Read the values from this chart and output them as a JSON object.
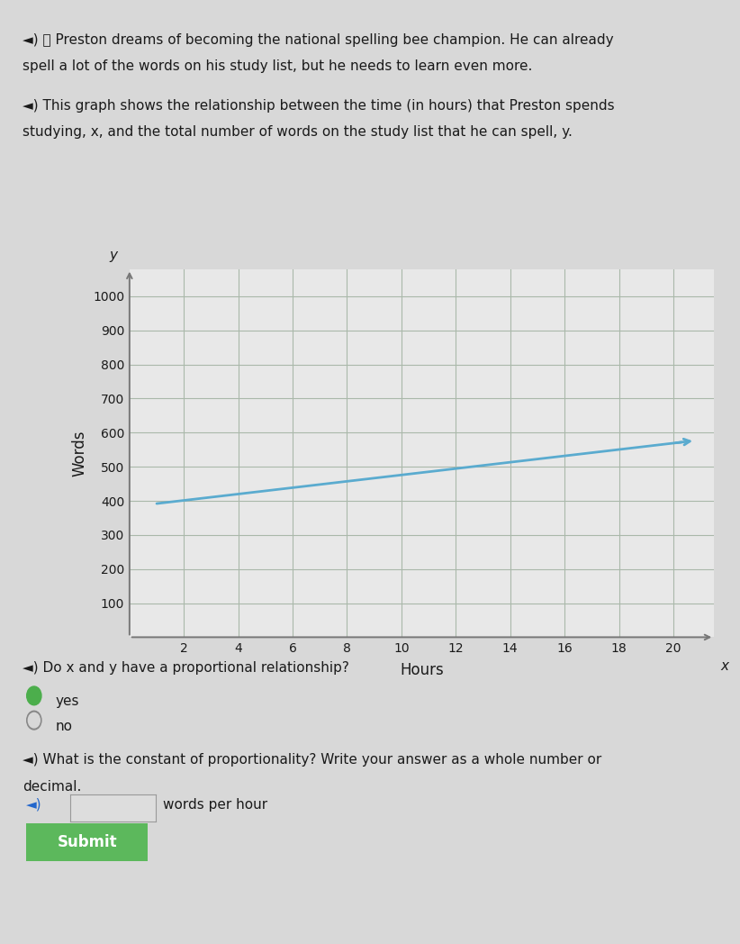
{
  "bg_color": "#d8d8d8",
  "content_bg": "#e8e8e8",
  "text_color": "#1a1a1a",
  "graph_xlabel": "Hours",
  "graph_ylabel": "Words",
  "graph_xaxis_label": "x",
  "graph_yaxis_label": "y",
  "xlim": [
    0,
    21.5
  ],
  "ylim": [
    0,
    1080
  ],
  "xticks": [
    2,
    4,
    6,
    8,
    10,
    12,
    14,
    16,
    18,
    20
  ],
  "yticks": [
    100,
    200,
    300,
    400,
    500,
    600,
    700,
    800,
    900,
    1000
  ],
  "line_x": [
    1,
    20.3
  ],
  "line_y": [
    392,
    572
  ],
  "line_color": "#5aabcf",
  "line_width": 2.0,
  "grid_color": "#aab8aa",
  "axis_color": "#777777",
  "question1": "Do x and y have a proportional relationship?",
  "radio_yes": "yes",
  "radio_no": "no",
  "yes_selected": true,
  "question2_line1": "What is the constant of proportionality? Write your answer as a whole number or",
  "question2_line2": "decimal.",
  "input_label": "words per hour",
  "submit_text": "Submit",
  "submit_bg": "#5cb85c",
  "submit_text_color": "#ffffff",
  "speaker_color": "#2266cc",
  "radio_selected_color": "#4cae4c",
  "radio_unselected_color": "#bbbbbb",
  "para1_line1": "◄) 🔊 Preston dreams of becoming the national spelling bee champion. He can already",
  "para1_line2": "spell a lot of the words on his study list, but he needs to learn even more.",
  "para2_line1": "◄) This graph shows the relationship between the time (in hours) that Preston spends",
  "para2_line2": "studying, x, and the total number of words on the study list that he can spell, y.",
  "q1_text": "◄) Do x and y have a proportional relationship?",
  "q2_text": "◄) What is the constant of proportionality? Write your answer as a whole number or",
  "speaker_small": "◄)"
}
